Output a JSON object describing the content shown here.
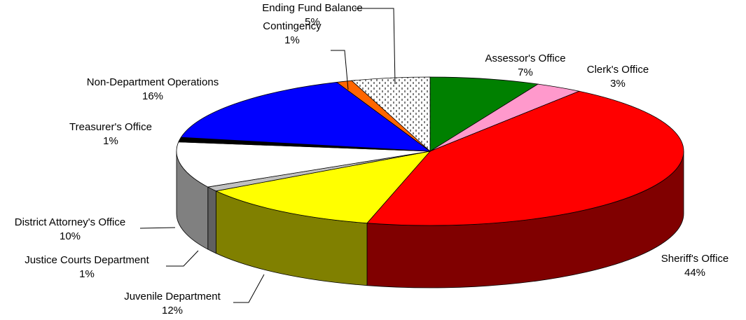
{
  "chart_data": {
    "type": "pie",
    "categories": [
      "Assessor's Office",
      "Clerk's Office",
      "Sheriff's Office",
      "Juvenile Department",
      "Justice Courts Department",
      "District Attorney's Office",
      "Treasurer's Office",
      "Non-Department Operations",
      "Contingency",
      "Ending Fund Balance"
    ],
    "values": [
      7,
      3,
      44,
      12,
      1,
      10,
      1,
      16,
      1,
      5
    ],
    "value_labels": [
      "7%",
      "3%",
      "44%",
      "12%",
      "1%",
      "10%",
      "1%",
      "16%",
      "1%",
      "5%"
    ],
    "colors": [
      "#008000",
      "#ff99cc",
      "#ff0000",
      "#ffff00",
      "#c0c0c0",
      "#ffffff",
      "#000000",
      "#0000ff",
      "#ff6600",
      "#ffffff"
    ],
    "patterned_slice": 9,
    "three_d": true
  }
}
